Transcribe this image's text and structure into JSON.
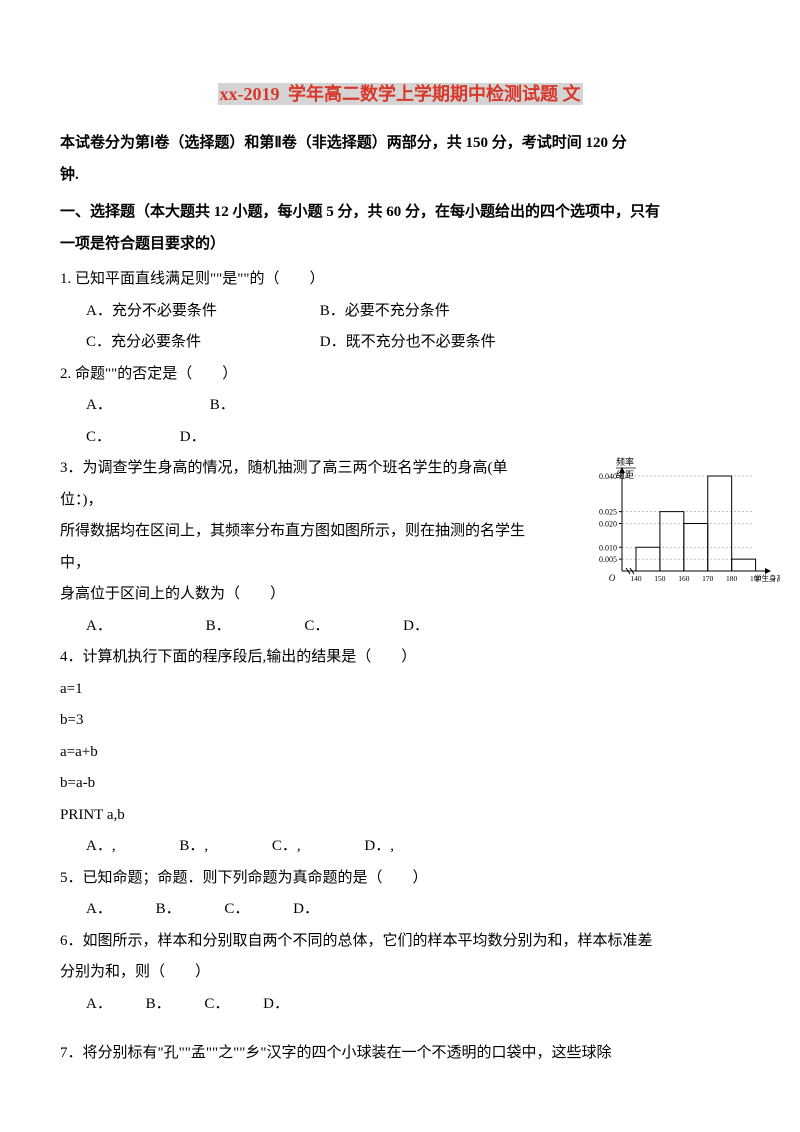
{
  "title_prefix": "xx-2019",
  "title_rest": " 学年高二数学上学期期中检测试题 文",
  "intro_line1": "本试卷分为第Ⅰ卷（选择题）和第Ⅱ卷（非选择题）两部分，共 150 分，考试时间 120 分",
  "intro_line2": "钟.",
  "section1_line1": "一、选择题（本大题共 12 小题，每小题 5 分，共 60 分，在每小题给出的四个选项中，只有",
  "section1_line2": "一项是符合题目要求的）",
  "q1": {
    "text": "1. 已知平面直线满足则\"\"是\"\"的（　　）",
    "A": "A．充分不必要条件",
    "B": "B．必要不充分条件",
    "C": "C．充分必要条件",
    "D": "D．既不充分也不必要条件"
  },
  "q2": {
    "text": "2. 命题\"\"的否定是（　　）",
    "A": "A．",
    "B": "B．",
    "C": "C．",
    "D": "D．"
  },
  "q3": {
    "line1": "3．为调查学生身高的情况，随机抽测了高三两个班名学生的身高(单位：)，",
    "line2": "所得数据均在区间上，其频率分布直方图如图所示，则在抽测的名学生中，",
    "line3": "身高位于区间上的人数为（　　）",
    "A": "A．",
    "B": "B．",
    "C": "C．",
    "D": "D．"
  },
  "q4": {
    "text": "4．计算机执行下面的程序段后,输出的结果是（　　）",
    "code": [
      "a=1",
      "b=3",
      "a=a+b",
      "b=a-b",
      "PRINT  a,b"
    ],
    "A": "A．,",
    "B": "B．,",
    "C": "C．,",
    "D": "D．,"
  },
  "q5": {
    "text": "5．已知命题；命题．则下列命题为真命题的是（　　）",
    "A": "A．",
    "B": "B．",
    "C": "C．",
    "D": "D．"
  },
  "q6": {
    "line1": "6．如图所示，样本和分别取自两个不同的总体，它们的样本平均数分别为和，样本标准差",
    "line2": "分别为和，则（　　）",
    "A": "A．",
    "B": "B．",
    "C": "C．",
    "D": "D．"
  },
  "q7": {
    "text": "7．将分别标有\"孔\"\"孟\"\"之\"\"乡\"汉字的四个小球装在一个不透明的口袋中，这些球除"
  },
  "histogram": {
    "y_label_top": "频率",
    "y_label_bottom": "组距",
    "y_ticks": [
      "0.040",
      "0.025",
      "0.020",
      "0.010",
      "0.005"
    ],
    "x_ticks": [
      "140",
      "150",
      "160",
      "170",
      "180",
      "190"
    ],
    "x_label": "学生身高/cm",
    "bars": [
      {
        "x": 0,
        "h": 0.01
      },
      {
        "x": 1,
        "h": 0.025
      },
      {
        "x": 2,
        "h": 0.02
      },
      {
        "x": 3,
        "h": 0.04
      },
      {
        "x": 4,
        "h": 0.005
      }
    ],
    "axis_color": "#000000",
    "bg": "#ffffff"
  }
}
